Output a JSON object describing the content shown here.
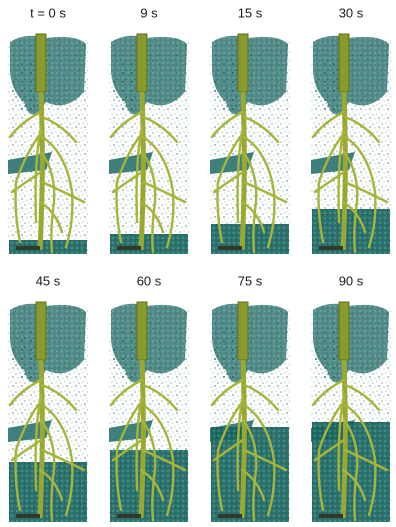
{
  "panels": [
    {
      "label": "t = 0 s"
    },
    {
      "label": "9 s"
    },
    {
      "label": "15 s"
    },
    {
      "label": "30 s"
    },
    {
      "label": "45 s"
    },
    {
      "label": "60 s"
    },
    {
      "label": "75 s"
    },
    {
      "label": "90 s"
    }
  ]
}
